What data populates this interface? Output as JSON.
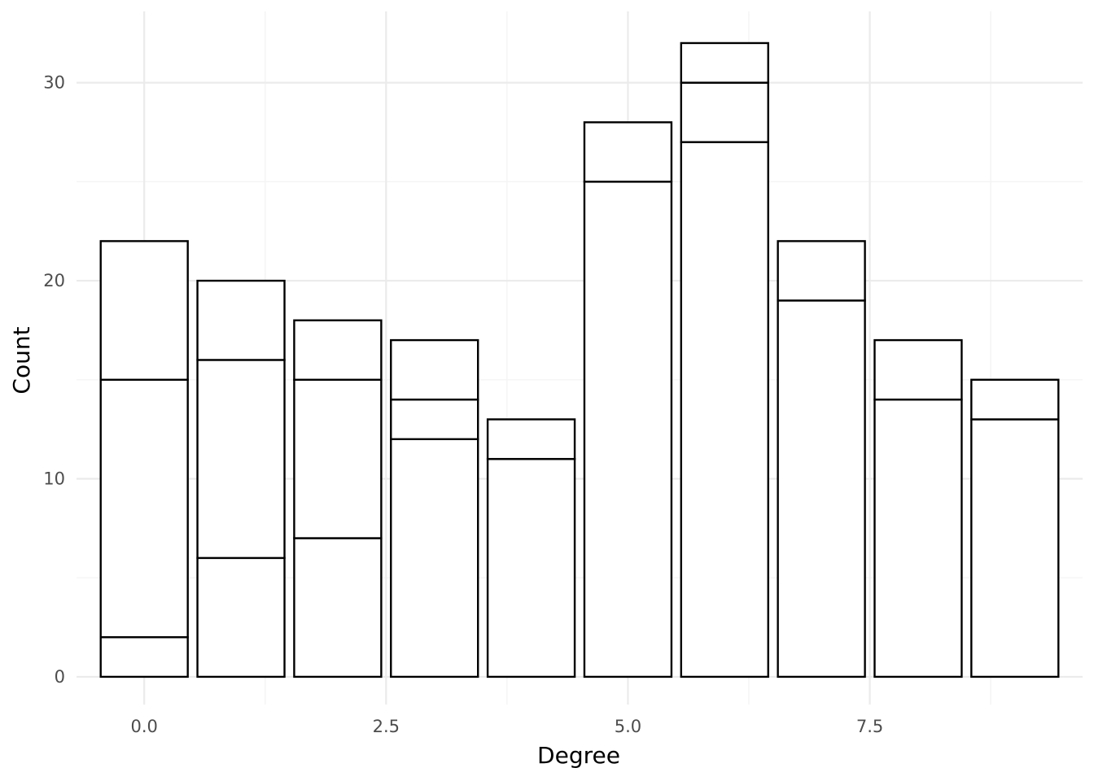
{
  "chart_data": {
    "type": "bar",
    "stacked": true,
    "title": "",
    "xlabel": "Degree",
    "ylabel": "Count",
    "x": [
      0,
      1,
      2,
      3,
      4,
      5,
      6,
      7,
      8,
      9
    ],
    "totals": [
      22,
      20,
      18,
      17,
      13,
      28,
      32,
      22,
      17,
      15
    ],
    "stack_boundaries": [
      [
        0,
        2,
        15,
        22
      ],
      [
        0,
        6,
        16,
        20
      ],
      [
        0,
        7,
        15,
        18
      ],
      [
        0,
        12,
        14,
        17
      ],
      [
        0,
        11,
        13
      ],
      [
        0,
        25,
        28
      ],
      [
        0,
        27,
        30,
        32
      ],
      [
        0,
        19,
        22
      ],
      [
        0,
        14,
        17
      ],
      [
        0,
        13,
        15
      ]
    ],
    "xlim": [
      -0.7,
      9.7
    ],
    "ylim": [
      -1.4,
      33.6
    ],
    "x_ticks": [
      0,
      2.5,
      5,
      7.5
    ],
    "x_tick_labels": [
      "0.0",
      "2.5",
      "5.0",
      "7.5"
    ],
    "y_ticks": [
      0,
      10,
      20,
      30
    ],
    "y_tick_labels": [
      "0",
      "10",
      "20",
      "30"
    ],
    "bar_fill": "#ffffff",
    "bar_stroke": "#000000",
    "grid": true,
    "legend": "none"
  }
}
